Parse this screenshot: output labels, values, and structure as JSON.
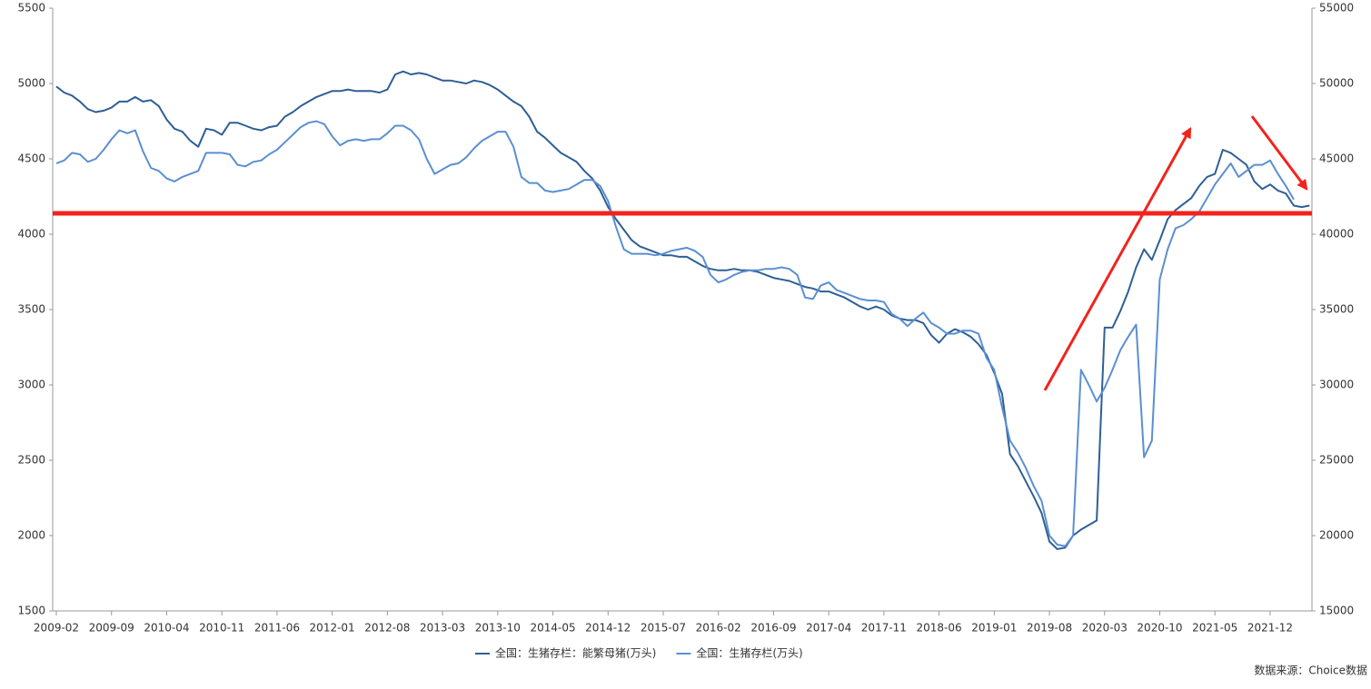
{
  "chart_data": {
    "type": "line",
    "source": "数据来源：Choice数据",
    "x": [
      "2009-02",
      "2009-03",
      "2009-04",
      "2009-05",
      "2009-06",
      "2009-07",
      "2009-08",
      "2009-09",
      "2009-10",
      "2009-11",
      "2009-12",
      "2010-01",
      "2010-02",
      "2010-03",
      "2010-04",
      "2010-05",
      "2010-06",
      "2010-07",
      "2010-08",
      "2010-09",
      "2010-10",
      "2010-11",
      "2010-12",
      "2011-01",
      "2011-02",
      "2011-03",
      "2011-04",
      "2011-05",
      "2011-06",
      "2011-07",
      "2011-08",
      "2011-09",
      "2011-10",
      "2011-11",
      "2011-12",
      "2012-01",
      "2012-02",
      "2012-03",
      "2012-04",
      "2012-05",
      "2012-06",
      "2012-07",
      "2012-08",
      "2012-09",
      "2012-10",
      "2012-11",
      "2012-12",
      "2013-01",
      "2013-02",
      "2013-03",
      "2013-04",
      "2013-05",
      "2013-06",
      "2013-07",
      "2013-08",
      "2013-09",
      "2013-10",
      "2013-11",
      "2013-12",
      "2014-01",
      "2014-02",
      "2014-03",
      "2014-04",
      "2014-05",
      "2014-06",
      "2014-07",
      "2014-08",
      "2014-09",
      "2014-10",
      "2014-11",
      "2014-12",
      "2015-01",
      "2015-02",
      "2015-03",
      "2015-04",
      "2015-05",
      "2015-06",
      "2015-07",
      "2015-08",
      "2015-09",
      "2015-10",
      "2015-11",
      "2015-12",
      "2016-01",
      "2016-02",
      "2016-03",
      "2016-04",
      "2016-05",
      "2016-06",
      "2016-07",
      "2016-08",
      "2016-09",
      "2016-10",
      "2016-11",
      "2016-12",
      "2017-01",
      "2017-02",
      "2017-03",
      "2017-04",
      "2017-05",
      "2017-06",
      "2017-07",
      "2017-08",
      "2017-09",
      "2017-10",
      "2017-11",
      "2017-12",
      "2018-01",
      "2018-02",
      "2018-03",
      "2018-04",
      "2018-05",
      "2018-06",
      "2018-07",
      "2018-08",
      "2018-09",
      "2018-10",
      "2018-11",
      "2018-12",
      "2019-01",
      "2019-02",
      "2019-03",
      "2019-04",
      "2019-05",
      "2019-06",
      "2019-07",
      "2019-08",
      "2019-09",
      "2019-10",
      "2019-11",
      "2019-12",
      "2020-01",
      "2020-02",
      "2020-03",
      "2020-04",
      "2020-05",
      "2020-06",
      "2020-07",
      "2020-08",
      "2020-09",
      "2020-10",
      "2020-11",
      "2020-12",
      "2021-01",
      "2021-02",
      "2021-03",
      "2021-04",
      "2021-05",
      "2021-06",
      "2021-07",
      "2021-08",
      "2021-09",
      "2021-10",
      "2021-11",
      "2021-12",
      "2022-01",
      "2022-02",
      "2022-03",
      "2022-04",
      "2022-05"
    ],
    "series": [
      {
        "name": "全国：生猪存栏：能繁母猪(万头)",
        "color": "#2e5f95",
        "values": [
          4980,
          4940,
          4920,
          4880,
          4830,
          4810,
          4820,
          4840,
          4880,
          4880,
          4910,
          4880,
          4890,
          4850,
          4760,
          4700,
          4680,
          4620,
          4580,
          4700,
          4690,
          4660,
          4740,
          4740,
          4720,
          4700,
          4690,
          4710,
          4720,
          4780,
          4810,
          4850,
          4880,
          4910,
          4930,
          4950,
          4950,
          4960,
          4950,
          4950,
          4950,
          4940,
          4960,
          5060,
          5080,
          5060,
          5070,
          5060,
          5040,
          5020,
          5020,
          5010,
          5000,
          5020,
          5010,
          4990,
          4960,
          4920,
          4880,
          4850,
          4780,
          4680,
          4640,
          4590,
          4540,
          4510,
          4480,
          4420,
          4370,
          4290,
          4180,
          4100,
          4030,
          3960,
          3920,
          3900,
          3880,
          3860,
          3860,
          3850,
          3850,
          3820,
          3790,
          3770,
          3760,
          3760,
          3770,
          3760,
          3760,
          3750,
          3730,
          3710,
          3700,
          3690,
          3670,
          3650,
          3640,
          3620,
          3620,
          3600,
          3580,
          3550,
          3520,
          3500,
          3520,
          3500,
          3460,
          3440,
          3430,
          3430,
          3410,
          3330,
          3280,
          3340,
          3370,
          3350,
          3320,
          3270,
          3200,
          3080,
          2940,
          2540,
          2460,
          2360,
          2260,
          2150,
          1960,
          1910,
          1920,
          2000,
          2040,
          2070,
          2100,
          3380,
          3380,
          3490,
          3620,
          3780,
          3900,
          3830,
          3960,
          4100,
          4160,
          4200,
          4240,
          4320,
          4380,
          4400,
          4560,
          4540,
          4500,
          4460,
          4350,
          4300,
          4330,
          4290,
          4270,
          4190,
          4180,
          4190
        ]
      },
      {
        "name": "全国：生猪存栏(万头)",
        "color": "#5b8fd1",
        "axis": "y2",
        "values": [
          44700,
          44900,
          45400,
          45300,
          44800,
          45000,
          45600,
          46300,
          46900,
          46700,
          46900,
          45500,
          44400,
          44200,
          43700,
          43500,
          43800,
          44000,
          44200,
          45400,
          45400,
          45400,
          45300,
          44600,
          44500,
          44800,
          44900,
          45300,
          45600,
          46100,
          46600,
          47100,
          47400,
          47500,
          47300,
          46500,
          45900,
          46200,
          46300,
          46200,
          46300,
          46300,
          46700,
          47200,
          47200,
          46900,
          46300,
          45000,
          44000,
          44300,
          44600,
          44700,
          45100,
          45700,
          46200,
          46500,
          46800,
          46800,
          45800,
          43800,
          43400,
          43400,
          42900,
          42800,
          42900,
          43000,
          43300,
          43600,
          43600,
          43200,
          42200,
          40500,
          39000,
          38700,
          38700,
          38700,
          38600,
          38700,
          38900,
          39000,
          39100,
          38900,
          38500,
          37300,
          36800,
          37000,
          37300,
          37500,
          37600,
          37600,
          37700,
          37700,
          37800,
          37700,
          37300,
          35800,
          35700,
          36600,
          36800,
          36300,
          36100,
          35900,
          35700,
          35600,
          35600,
          35500,
          34700,
          34400,
          33900,
          34400,
          34800,
          34100,
          33800,
          33400,
          33400,
          33600,
          33600,
          33400,
          31800,
          31000,
          28500,
          26300,
          25500,
          24500,
          23300,
          22300,
          20000,
          19400,
          19300,
          20000,
          31000,
          30000,
          28900,
          29800,
          31000,
          32300,
          33200,
          34000,
          25200,
          26300,
          37000,
          39000,
          40400,
          40600,
          41000,
          41500,
          42400,
          43300,
          44000,
          44700,
          43800,
          44200,
          44600,
          44600,
          44900,
          44000,
          43200,
          42300,
          null,
          null
        ]
      }
    ],
    "ylim": [
      1500,
      5500
    ],
    "yticks": [
      1500,
      2000,
      2500,
      3000,
      3500,
      4000,
      4500,
      5000,
      5500
    ],
    "y2lim": [
      15000,
      55000
    ],
    "y2ticks": [
      15000,
      20000,
      25000,
      30000,
      35000,
      40000,
      45000,
      50000,
      55000
    ],
    "xticks": [
      "2009-02",
      "2009-09",
      "2010-04",
      "2010-11",
      "2011-06",
      "2012-01",
      "2012-08",
      "2013-03",
      "2013-10",
      "2014-05",
      "2014-12",
      "2015-07",
      "2016-02",
      "2016-09",
      "2017-04",
      "2017-11",
      "2018-06",
      "2019-01",
      "2019-08",
      "2020-03",
      "2020-10",
      "2021-05",
      "2021-12"
    ],
    "legend": "bottom"
  }
}
